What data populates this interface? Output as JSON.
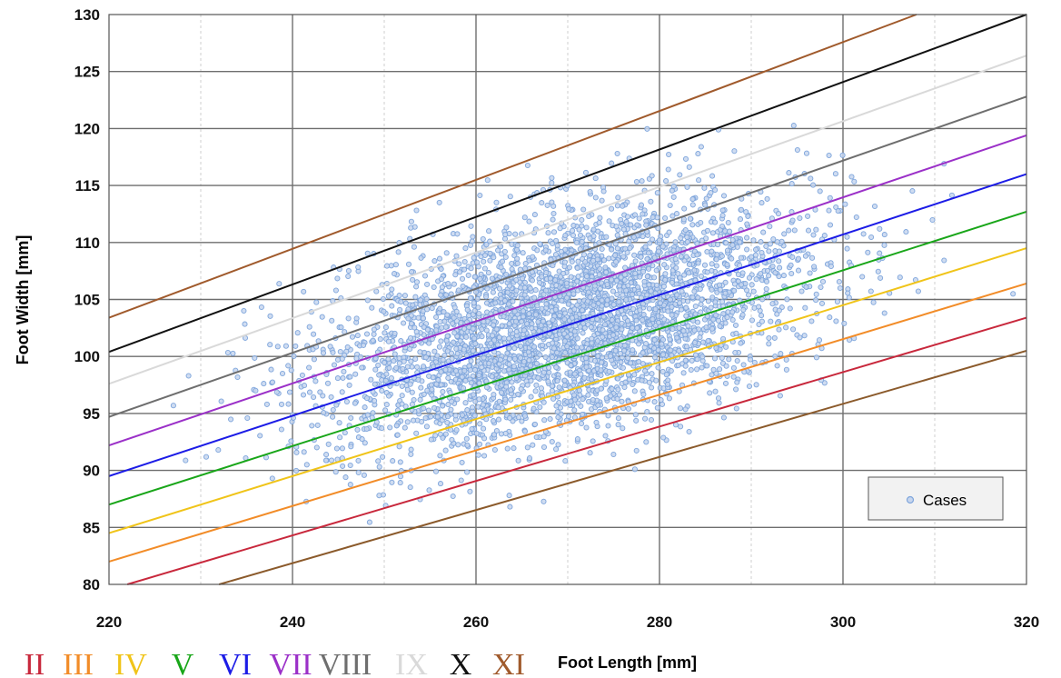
{
  "chart_data": {
    "type": "scatter",
    "xlabel": "Foot Length [mm]",
    "ylabel": "Foot Width [mm]",
    "xlim": [
      220,
      320
    ],
    "ylim": [
      80,
      130
    ],
    "x_ticks": [
      "220",
      "240",
      "260",
      "280",
      "300",
      "320"
    ],
    "y_ticks": [
      "80",
      "85",
      "90",
      "95",
      "100",
      "105",
      "110",
      "115",
      "120",
      "125",
      "130"
    ],
    "grid": true,
    "legend": {
      "placement": "bottom-right",
      "entries": [
        "Cases"
      ]
    },
    "scatter_series": {
      "name": "Cases",
      "color": "#7fa6dc",
      "center": [
        270,
        103
      ],
      "sd": [
        13,
        5.2
      ],
      "correlation": 0.45,
      "approx_count": 4000
    },
    "size_lines": [
      {
        "label": "II",
        "color": "#c8283c",
        "points": [
          [
            222,
            80.0
          ],
          [
            320,
            103.4
          ]
        ]
      },
      {
        "label": "III",
        "color": "#f28c28",
        "points": [
          [
            220,
            82.0
          ],
          [
            320,
            106.4
          ]
        ]
      },
      {
        "label": "IV",
        "color": "#f0c419",
        "points": [
          [
            220,
            84.5
          ],
          [
            320,
            109.5
          ]
        ]
      },
      {
        "label": "V",
        "color": "#19a619",
        "points": [
          [
            220,
            87.0
          ],
          [
            320,
            112.7
          ]
        ]
      },
      {
        "label": "VI",
        "color": "#1c1ce6",
        "points": [
          [
            220,
            89.5
          ],
          [
            320,
            116.0
          ]
        ]
      },
      {
        "label": "VII",
        "color": "#9b30c8",
        "points": [
          [
            220,
            92.2
          ],
          [
            320,
            119.4
          ]
        ]
      },
      {
        "label": "VIII",
        "color": "#6e6e6e",
        "points": [
          [
            220,
            94.7
          ],
          [
            320,
            122.8
          ]
        ]
      },
      {
        "label": "IX",
        "color": "#d9d9d9",
        "points": [
          [
            220,
            97.6
          ],
          [
            320,
            126.4
          ]
        ]
      },
      {
        "label": "X",
        "color": "#111111",
        "points": [
          [
            220,
            100.4
          ],
          [
            320,
            130.0
          ]
        ]
      },
      {
        "label": "XI",
        "color": "#a05a2c",
        "points": [
          [
            220,
            103.4
          ],
          [
            308,
            130.0
          ]
        ]
      },
      {
        "label": "",
        "color": "#8b5a2b",
        "points": [
          [
            232,
            80.0
          ],
          [
            320,
            100.5
          ]
        ]
      }
    ]
  }
}
